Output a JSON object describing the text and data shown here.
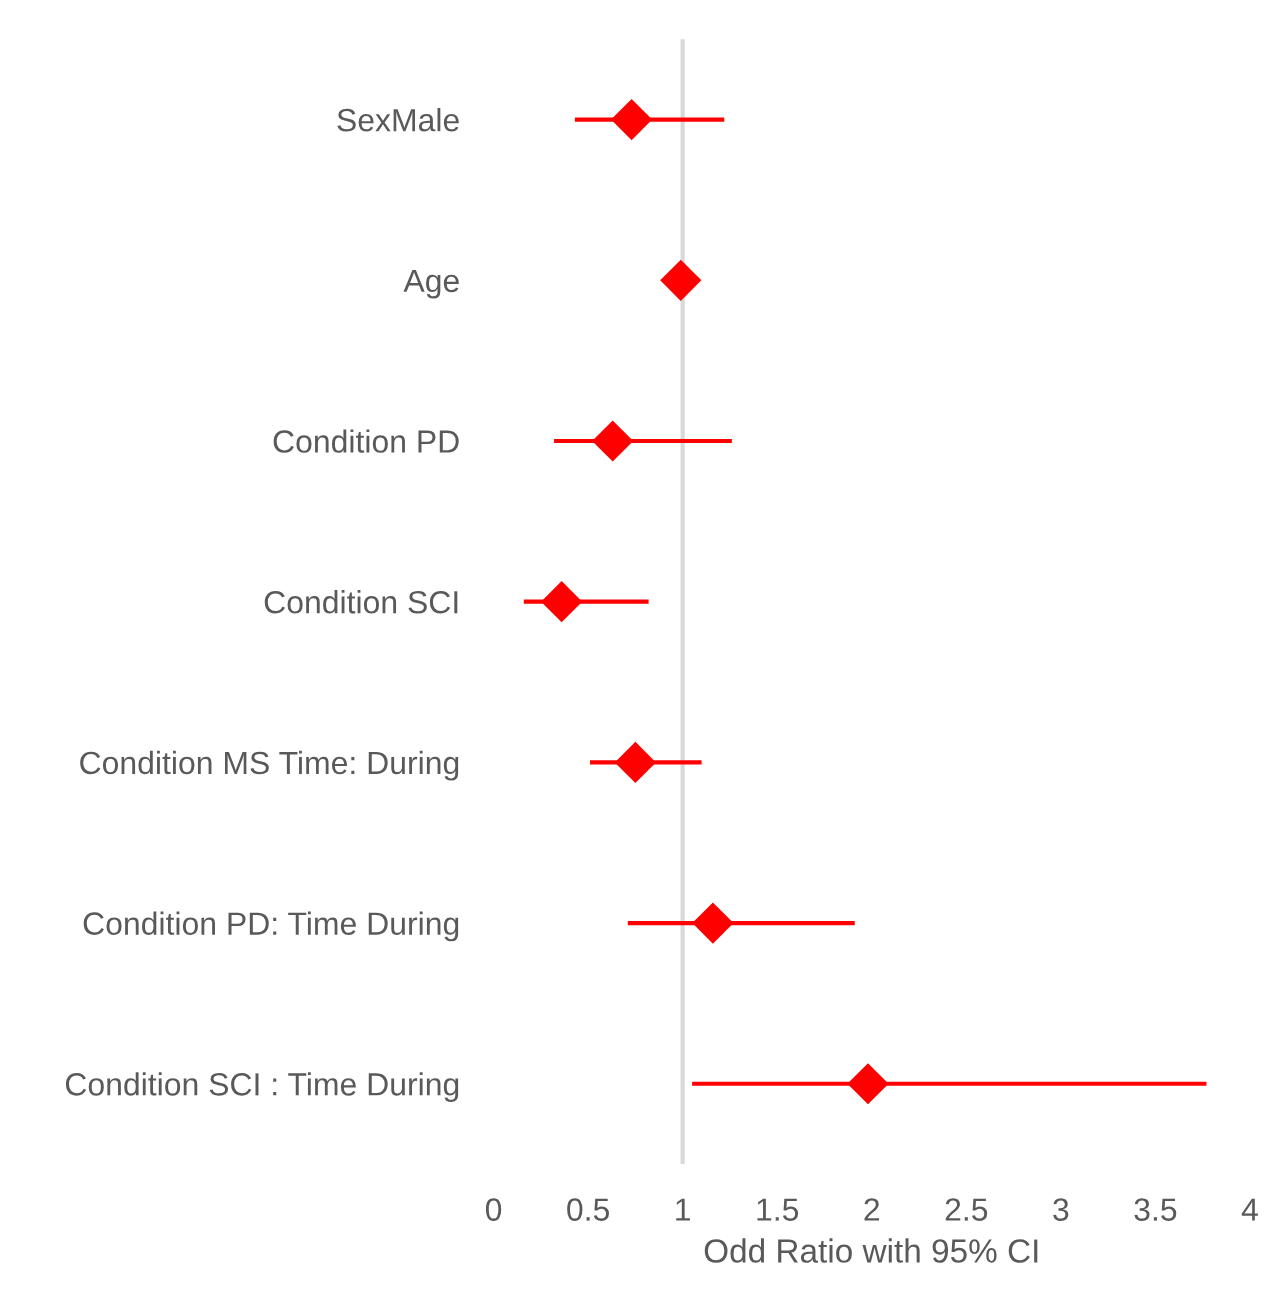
{
  "chart_data": {
    "type": "scatter",
    "orientation": "horizontal",
    "xlabel": "Odd Ratio with 95% CI",
    "categories": [
      "SexMale",
      "Age",
      "Condition PD",
      "Condition SCI",
      "Condition MS Time: During",
      "Condition PD: Time During",
      "Condition SCI : Time During"
    ],
    "color": "#ff0000",
    "values": [
      0.73,
      0.99,
      0.63,
      0.36,
      0.75,
      1.16,
      1.98
    ],
    "errors": [
      [
        0.43,
        1.22
      ],
      null,
      [
        0.32,
        1.26
      ],
      [
        0.16,
        0.82
      ],
      [
        0.51,
        1.1
      ],
      [
        0.71,
        1.91
      ],
      [
        1.05,
        3.77
      ]
    ],
    "marker": "diamond",
    "xlim": [
      0,
      4
    ],
    "xticks": [
      0,
      0.5,
      1,
      1.5,
      2,
      2.5,
      3,
      3.5,
      4
    ],
    "ref_lines": [
      {
        "axis": "x",
        "value": 1,
        "color": "#d9d9d9"
      }
    ],
    "grid": false,
    "legend": false
  }
}
